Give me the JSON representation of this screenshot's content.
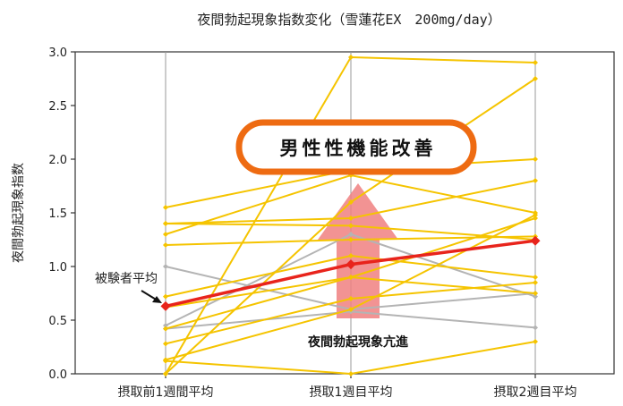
{
  "chart_data": {
    "type": "line",
    "title": "夜間勃起現象指数変化（雪蓮花EX　200mg/day）",
    "ylabel": "夜間勃起現象指数",
    "ylim": [
      0,
      3.0
    ],
    "yticks": [
      "0.0",
      "0.5",
      "1.0",
      "1.5",
      "2.0",
      "2.5",
      "3.0"
    ],
    "categories": [
      "摂取前1週間平均",
      "摂取1週目平均",
      "摂取2週目平均"
    ],
    "subjects_yellow": [
      [
        0.0,
        2.95,
        2.9
      ],
      [
        0.0,
        1.6,
        2.75
      ],
      [
        1.55,
        1.9,
        2.0
      ],
      [
        1.4,
        1.45,
        1.8
      ],
      [
        1.3,
        1.85,
        1.5
      ],
      [
        1.2,
        1.25,
        1.28
      ],
      [
        1.4,
        1.38,
        1.25
      ],
      [
        0.72,
        1.1,
        0.9
      ],
      [
        0.62,
        0.9,
        0.75
      ],
      [
        0.42,
        0.9,
        1.45
      ],
      [
        0.28,
        0.7,
        0.85
      ],
      [
        0.13,
        0.6,
        1.48
      ],
      [
        0.12,
        0.0,
        0.3
      ]
    ],
    "subjects_gray": [
      [
        1.0,
        0.6,
        0.75
      ],
      [
        0.45,
        1.3,
        0.72
      ],
      [
        0.42,
        0.58,
        0.43
      ]
    ],
    "average": {
      "name": "被験者平均",
      "values": [
        0.63,
        1.02,
        1.24
      ]
    },
    "colors": {
      "subject": "#f5c400",
      "control": "#b4b4b4",
      "average": "#e8241c",
      "badge_border": "#ee6b12",
      "arrow": "#f08080"
    },
    "badge": "男性性機能改善",
    "arrow_label": "夜間勃起現象亢進"
  }
}
